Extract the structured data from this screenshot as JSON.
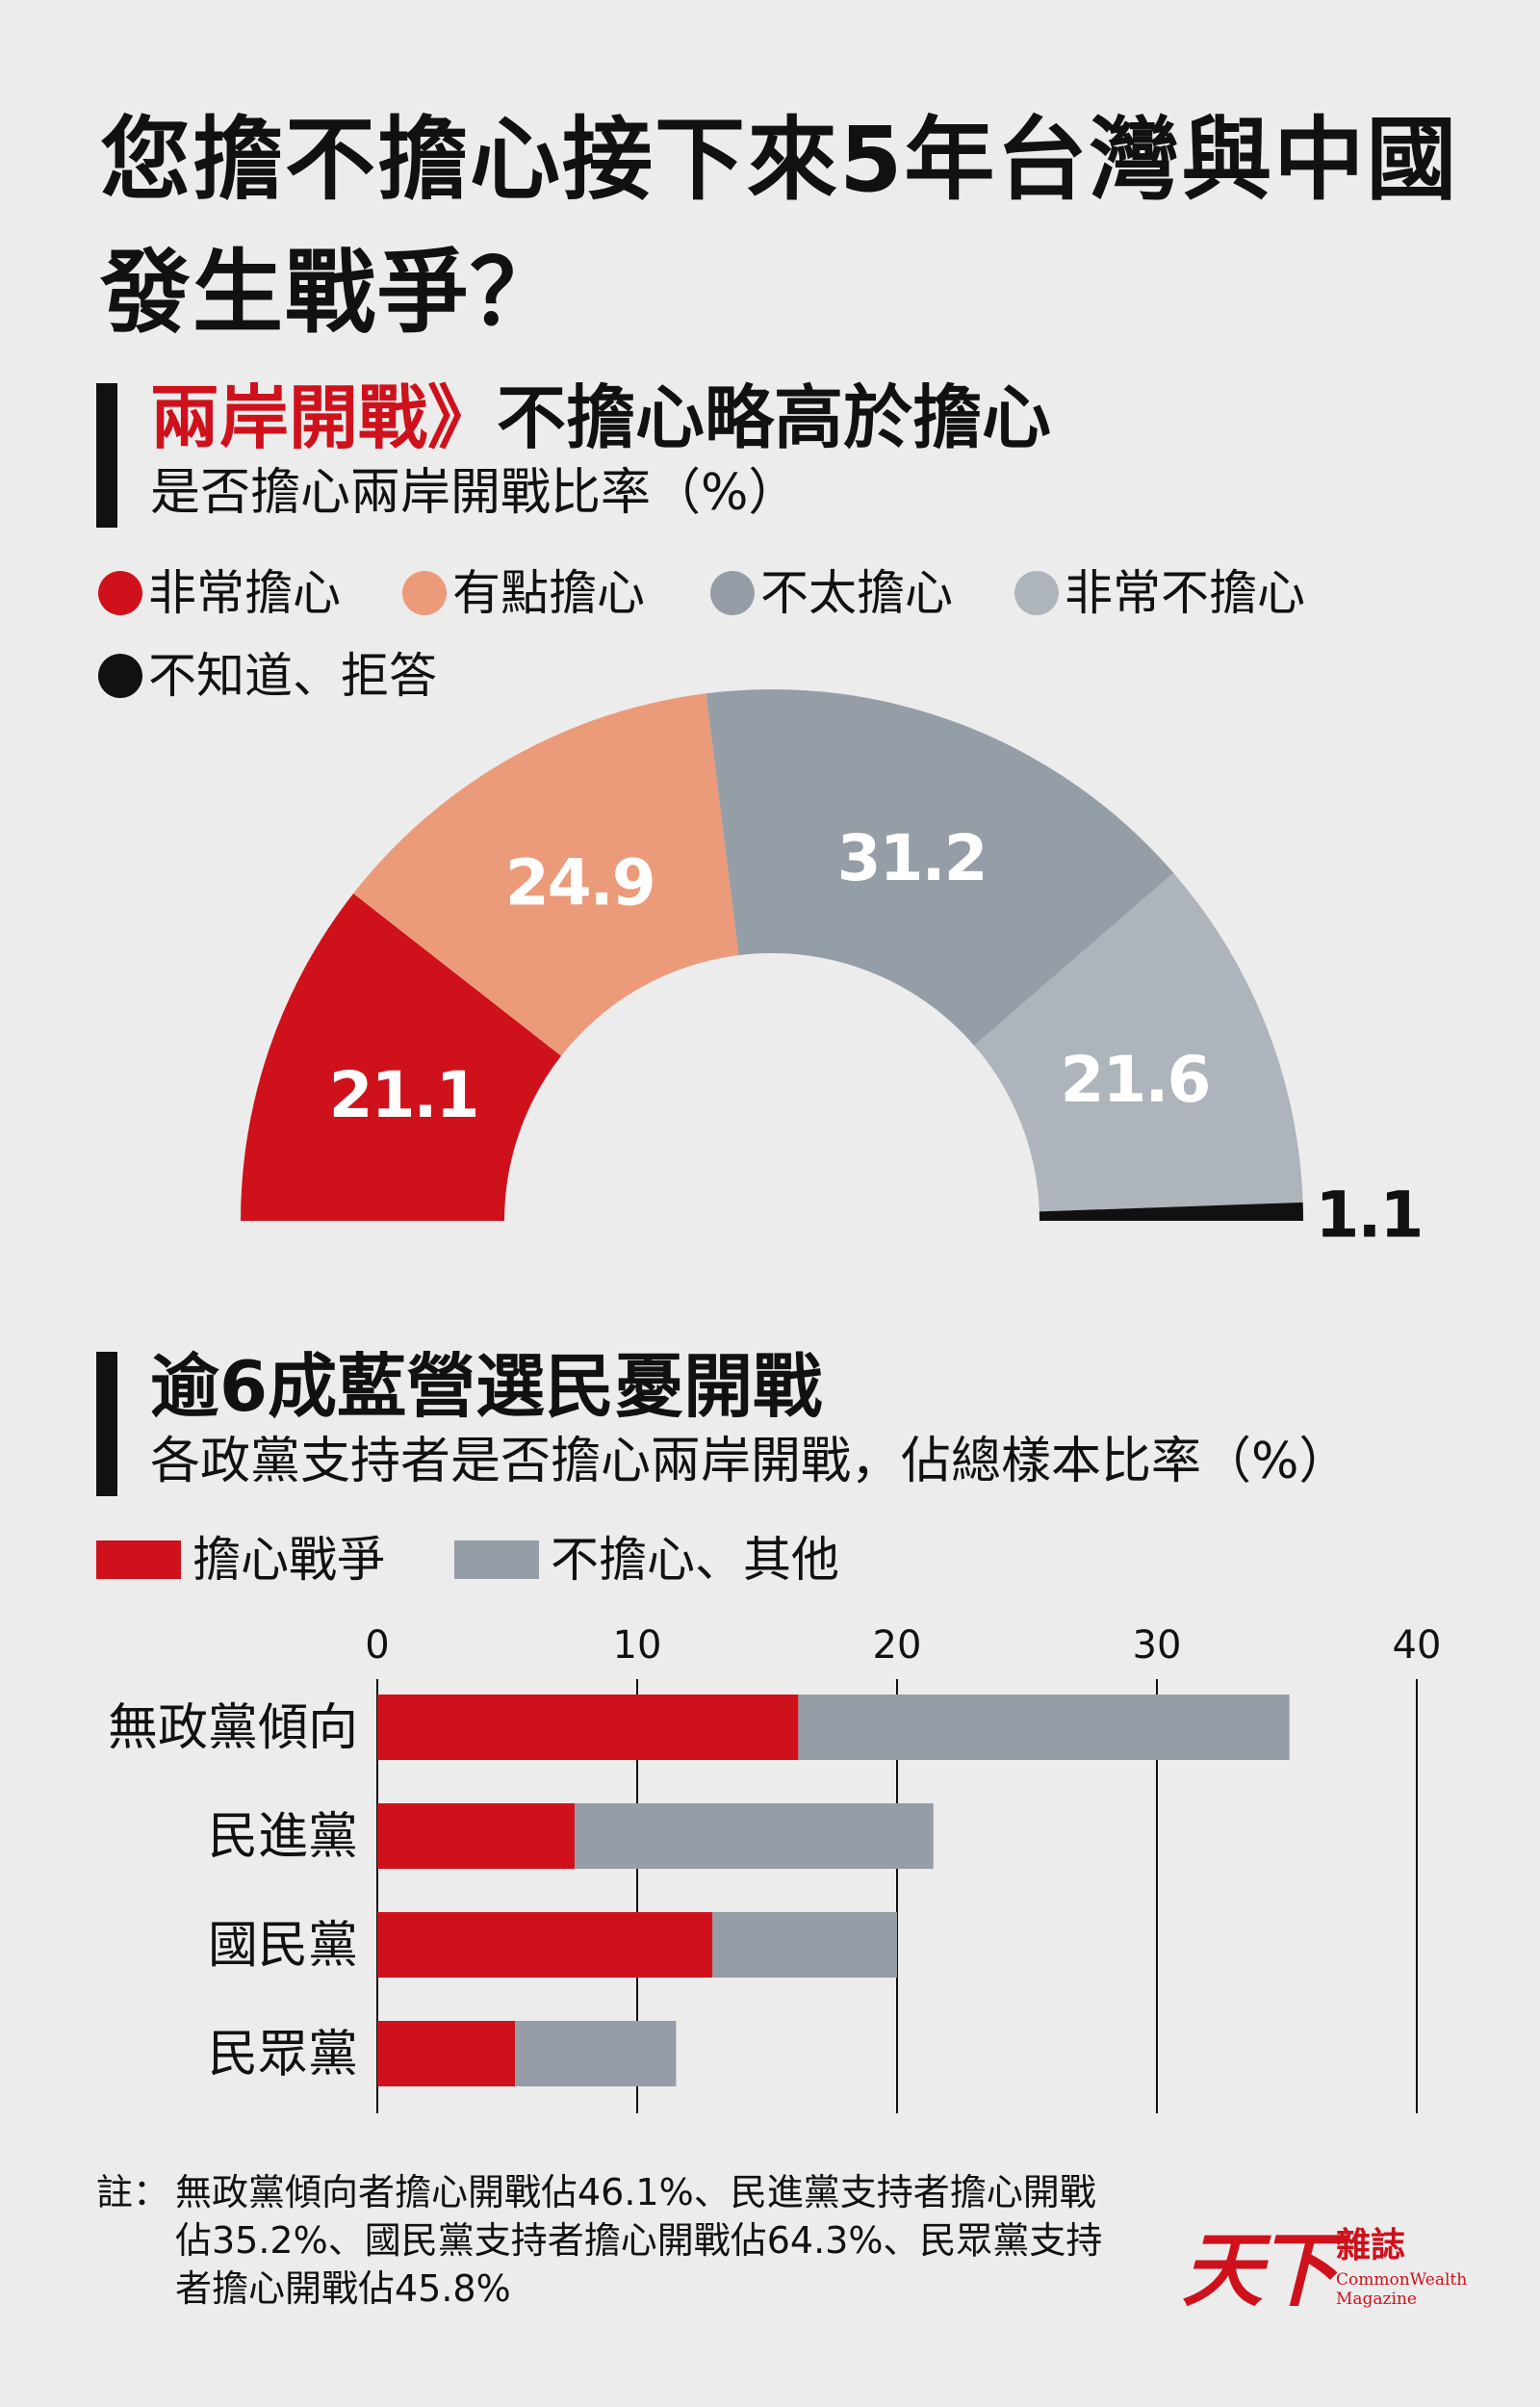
{
  "title": "您擔不擔心接下來5年台灣與中國發生戰爭？",
  "section1": {
    "heading_accent": "兩岸開戰》",
    "heading_rest": "不擔心略高於擔心",
    "subtitle": "是否擔心兩岸開戰比率（%）"
  },
  "section2": {
    "heading": "逾6成藍營選民憂開戰",
    "subtitle": "各政黨支持者是否擔心兩岸開戰，佔總樣本比率（%）"
  },
  "colors": {
    "red": "#cf111b",
    "salmon": "#eb9b79",
    "dark_gray": "#959ea6",
    "light_gray": "#aeb4bb",
    "black": "#111111"
  },
  "chart_data": [
    {
      "type": "pie",
      "variant": "semicircle-donut",
      "title": "是否擔心兩岸開戰比率（%）",
      "legend_position": "top",
      "categories": [
        "非常擔心",
        "有點擔心",
        "不太擔心",
        "非常不擔心",
        "不知道、拒答"
      ],
      "values": [
        21.1,
        24.9,
        31.2,
        21.6,
        1.1
      ],
      "labels": [
        "21.1",
        "24.9",
        "31.2",
        "21.6",
        "1.1"
      ],
      "colors": [
        "#cf111b",
        "#eb9b79",
        "#959ea6",
        "#aeb4bb",
        "#111111"
      ]
    },
    {
      "type": "bar",
      "orientation": "horizontal",
      "stacked": true,
      "title": "各政黨支持者是否擔心兩岸開戰，佔總樣本比率（%）",
      "legend_position": "top-left",
      "categories": [
        "無政黨傾向",
        "民進黨",
        "國民黨",
        "民眾黨"
      ],
      "series": [
        {
          "name": "擔心戰爭",
          "values": [
            16.2,
            7.6,
            12.9,
            5.3
          ],
          "color": "#cf111b"
        },
        {
          "name": "不擔心、其他",
          "values": [
            18.9,
            13.8,
            7.1,
            6.2
          ],
          "color": "#959ea6"
        }
      ],
      "xlim": [
        0,
        40
      ],
      "xticks": [
        "0",
        "10",
        "20",
        "30",
        "40"
      ],
      "grid": true
    }
  ],
  "note": {
    "label": "註：",
    "text": "無政黨傾向者擔心開戰佔46.1%、民進黨支持者擔心開戰佔35.2%、國民黨支持者擔心開戰佔64.3%、民眾黨支持者擔心開戰佔45.8%"
  },
  "logo": {
    "big": "天下",
    "small_cn": "雜誌",
    "small_en": "CommonWealth Magazine"
  }
}
